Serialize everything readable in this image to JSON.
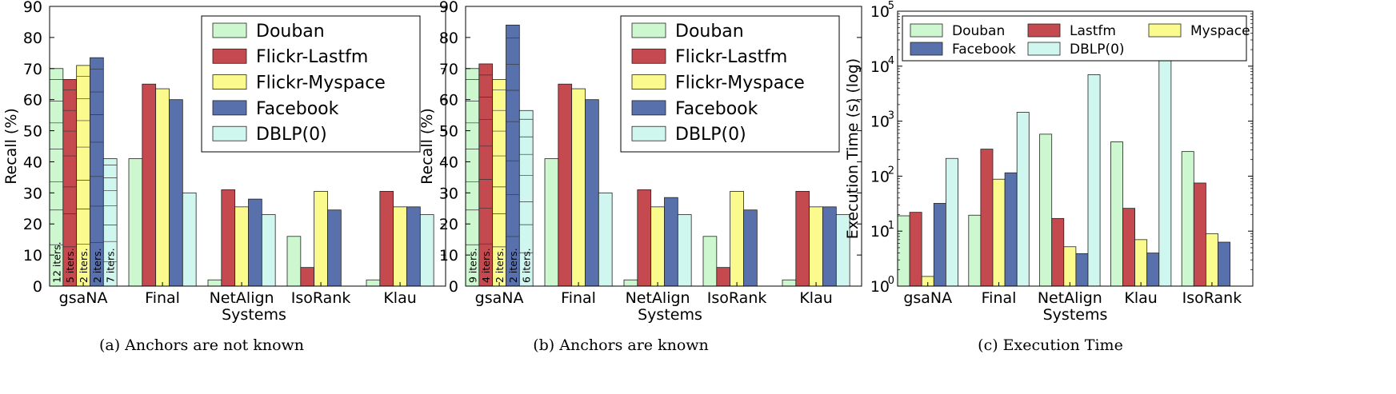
{
  "series_colors": {
    "Douban": "#ccf7cf",
    "Flickr-Lastfm": "#c44a4f",
    "Flickr-Myspace": "#fbfb8d",
    "Facebook": "#5870ab",
    "DBLP(0)": "#cff6ef"
  },
  "chart_data": [
    {
      "type": "bar",
      "caption": "(a)  Anchors are not known",
      "xlabel": "Systems",
      "ylabel": "Recall (%)",
      "ylim": [
        0,
        90
      ],
      "yticks": [
        "0",
        "10",
        "20",
        "30",
        "40",
        "50",
        "60",
        "70",
        "80",
        "90"
      ],
      "categories": [
        "gsaNA",
        "Final",
        "NetAlign",
        "IsoRank",
        "Klau"
      ],
      "legend_position": "top-right",
      "series": [
        {
          "name": "Douban",
          "color_key": "Douban",
          "values": [
            70,
            41,
            2,
            16,
            2
          ]
        },
        {
          "name": "Flickr-Lastfm",
          "color_key": "Flickr-Lastfm",
          "values": [
            66.5,
            65,
            31,
            6,
            30.5
          ]
        },
        {
          "name": "Flickr-Myspace",
          "color_key": "Flickr-Myspace",
          "values": [
            71,
            63.5,
            25.5,
            30.5,
            25.5
          ]
        },
        {
          "name": "Facebook",
          "color_key": "Facebook",
          "values": [
            73.5,
            60,
            28,
            24.5,
            25.5
          ]
        },
        {
          "name": "DBLP(0)",
          "color_key": "DBLP(0)",
          "values": [
            41,
            30,
            23,
            0,
            23
          ]
        }
      ],
      "iteration_labels": [
        "12 iters.",
        "5 iters.",
        "2 iters.",
        "2 iters.",
        "7 iters."
      ]
    },
    {
      "type": "bar",
      "caption": "(b)  Anchors are known",
      "xlabel": "Systems",
      "ylabel": "Recall (%)",
      "ylim": [
        0,
        90
      ],
      "yticks": [
        "0",
        "10",
        "20",
        "30",
        "40",
        "50",
        "60",
        "70",
        "80",
        "90"
      ],
      "categories": [
        "gsaNA",
        "Final",
        "NetAlign",
        "IsoRank",
        "Klau"
      ],
      "legend_position": "top-right",
      "series": [
        {
          "name": "Douban",
          "color_key": "Douban",
          "values": [
            70,
            41,
            2,
            16,
            2
          ]
        },
        {
          "name": "Flickr-Lastfm",
          "color_key": "Flickr-Lastfm",
          "values": [
            71.5,
            65,
            31,
            6,
            30.5
          ]
        },
        {
          "name": "Flickr-Myspace",
          "color_key": "Flickr-Myspace",
          "values": [
            66.5,
            63.5,
            25.5,
            30.5,
            25.5
          ]
        },
        {
          "name": "Facebook",
          "color_key": "Facebook",
          "values": [
            84,
            60,
            28.5,
            24.5,
            25.5
          ]
        },
        {
          "name": "DBLP(0)",
          "color_key": "DBLP(0)",
          "values": [
            56.5,
            30,
            23,
            0,
            23
          ]
        }
      ],
      "iteration_labels": [
        "9 iters.",
        "4 iters.",
        "2 iters.",
        "2 iters.",
        "6 iters."
      ]
    },
    {
      "type": "bar",
      "scale": "log",
      "caption": "(c)  Execution Time",
      "xlabel": "Systems",
      "ylabel": "Execution Time (s) (log)",
      "ylim": [
        1,
        100000
      ],
      "yticks": [
        "10",
        "10",
        "10",
        "10",
        "10",
        "10"
      ],
      "ytick_exponents": [
        "0",
        "1",
        "2",
        "3",
        "4",
        "5"
      ],
      "categories": [
        "gsaNA",
        "Final",
        "NetAlign",
        "Klau",
        "IsoRank"
      ],
      "legend_position": "top",
      "series": [
        {
          "name": "Douban",
          "color_key": "Douban",
          "values": [
            19,
            19.5,
            580,
            420,
            280
          ]
        },
        {
          "name": "Lastfm",
          "color_key": "Flickr-Lastfm",
          "values": [
            22,
            310,
            17,
            26,
            75
          ]
        },
        {
          "name": "Myspace",
          "color_key": "Flickr-Myspace",
          "values": [
            1.5,
            88,
            5.2,
            7,
            9
          ]
        },
        {
          "name": "Facebook",
          "color_key": "Facebook",
          "values": [
            32,
            115,
            3.9,
            4,
            6.3
          ]
        },
        {
          "name": "DBLP(0)",
          "color_key": "DBLP(0)",
          "values": [
            210,
            1450,
            7000,
            15000,
            0
          ]
        }
      ]
    }
  ]
}
